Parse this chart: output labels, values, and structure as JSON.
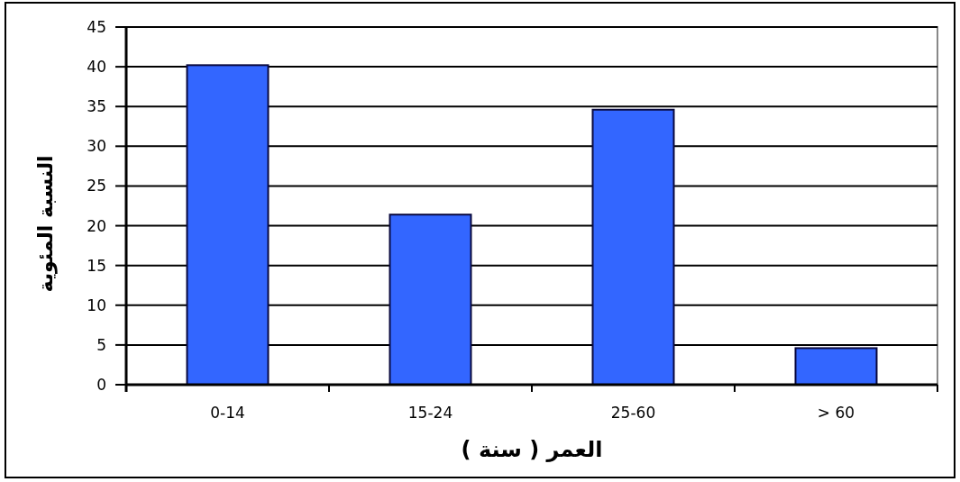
{
  "chart_data": {
    "type": "bar",
    "xlabel": "العمر ( سنة )",
    "ylabel": "النسبة المئوية",
    "categories": [
      "0-14",
      "15-24",
      "25-60",
      "> 60"
    ],
    "values": [
      40.2,
      21.4,
      34.6,
      4.6
    ],
    "color": "#3366ff",
    "ylim": [
      0,
      45
    ],
    "yticks": [
      0,
      5,
      10,
      15,
      20,
      25,
      30,
      35,
      40,
      45
    ],
    "grid": "y"
  }
}
